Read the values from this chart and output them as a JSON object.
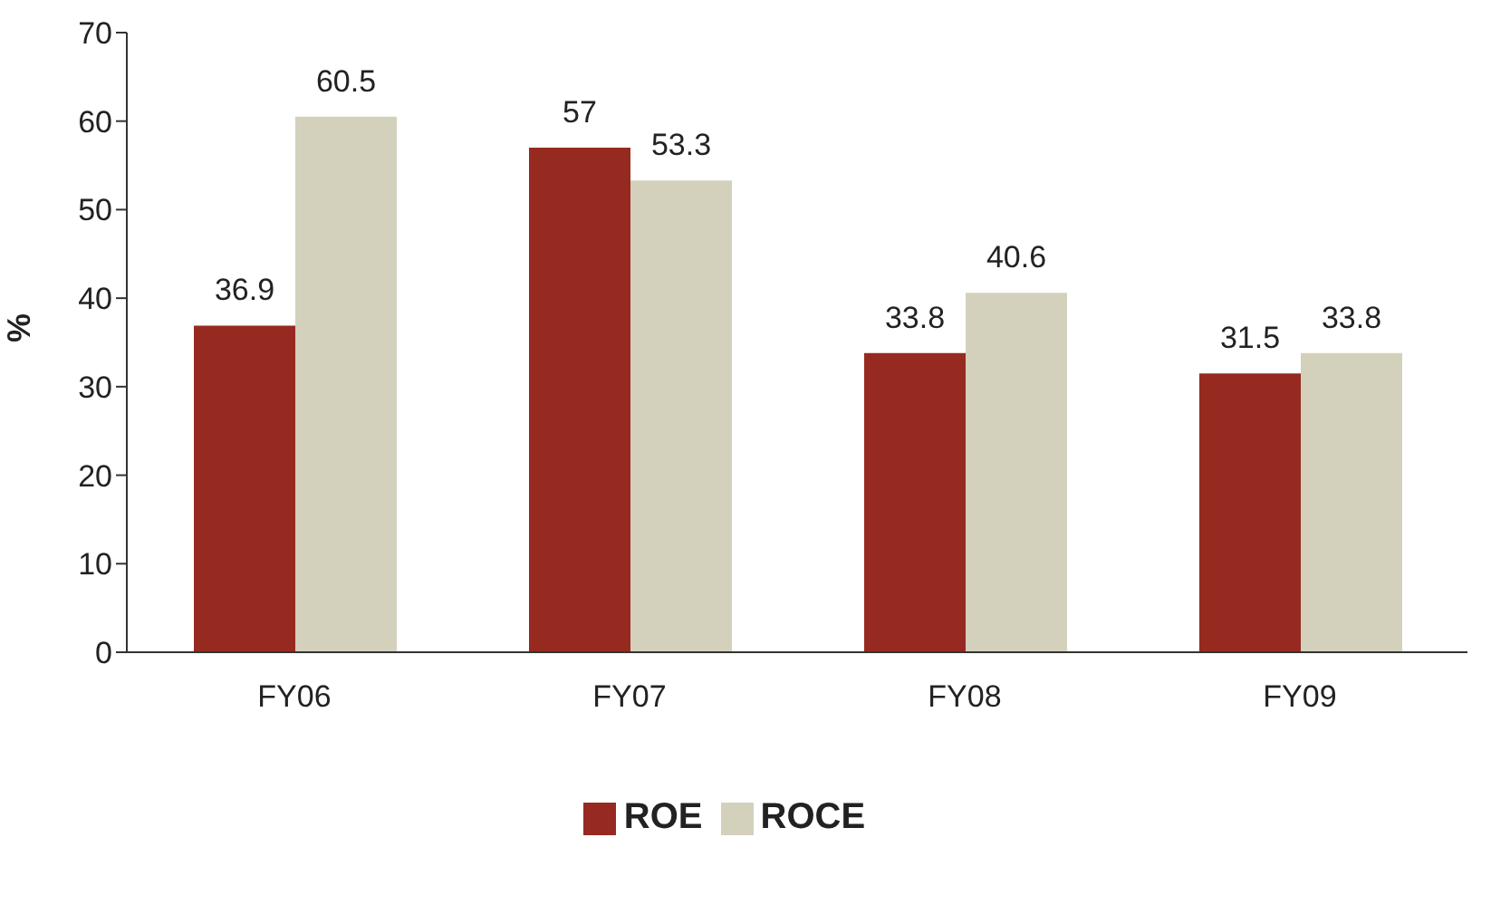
{
  "chart_data": {
    "type": "bar",
    "ylabel": "%",
    "categories": [
      "FY06",
      "FY07",
      "FY08",
      "FY09"
    ],
    "series": [
      {
        "name": "ROE",
        "color": "#962a20",
        "values": [
          36.9,
          57,
          33.8,
          31.5
        ]
      },
      {
        "name": "ROCE",
        "color": "#d3d0bc",
        "values": [
          60.5,
          53.3,
          40.6,
          33.8
        ]
      }
    ],
    "ylim": [
      0,
      70
    ],
    "yticks": [
      0,
      10,
      20,
      30,
      40,
      50,
      60,
      70
    ],
    "grid": false,
    "legend": "bottom",
    "data_labels": true
  }
}
